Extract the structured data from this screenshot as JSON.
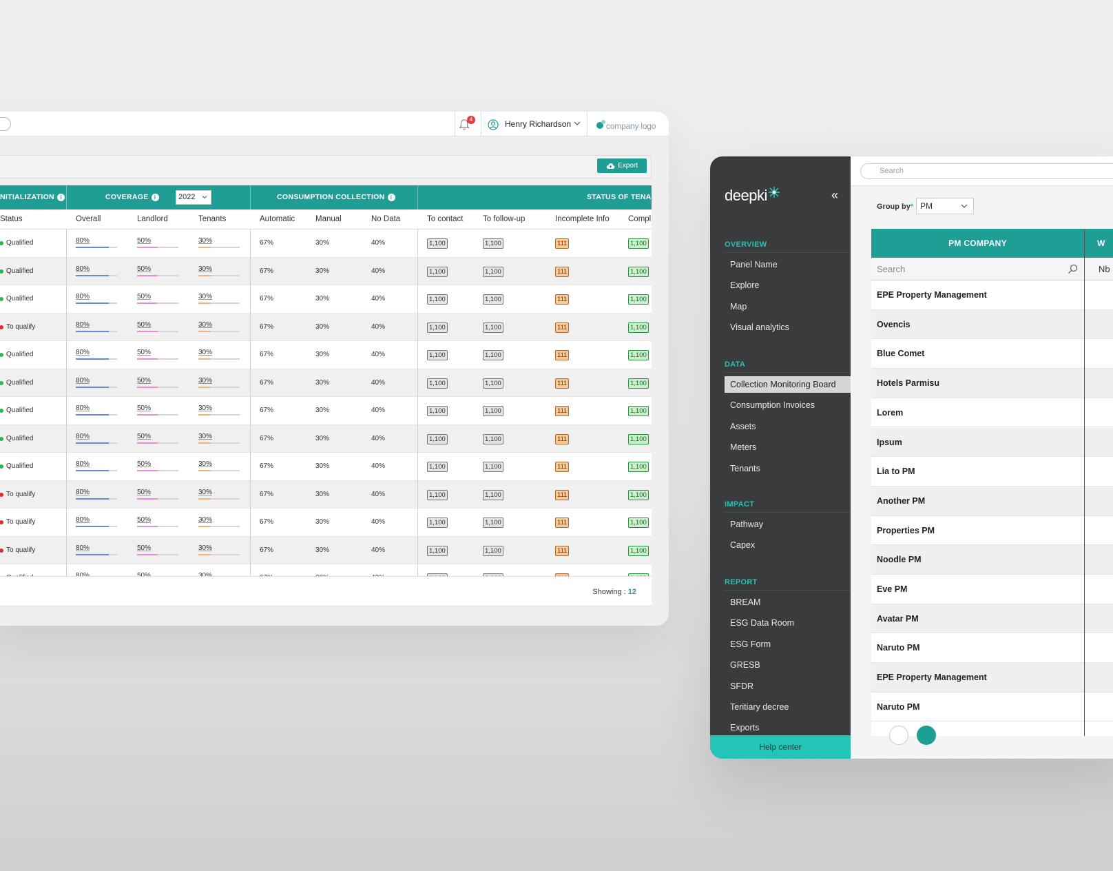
{
  "left_panel": {
    "notifications_count": "4",
    "user_name": "Henry Richardson",
    "company_logo_text": "company logo",
    "export_label": "Export",
    "groups": {
      "initialization": "NITIALIZATION",
      "coverage": "COVERAGE",
      "coverage_year": "2022",
      "consumption": "CONSUMPTION COLLECTION",
      "status": "STATUS OF TENA"
    },
    "columns": [
      "Status",
      "Overall",
      "Landlord",
      "Tenants",
      "Automatic",
      "Manual",
      "No Data",
      "To contact",
      "To follow-up",
      "Incomplete Info",
      "Compl"
    ],
    "rows": [
      {
        "status": "Qualified",
        "state": "ok"
      },
      {
        "status": "Qualified",
        "state": "ok"
      },
      {
        "status": "Qualified",
        "state": "ok"
      },
      {
        "status": "To qualify",
        "state": "todo"
      },
      {
        "status": "Qualified",
        "state": "ok"
      },
      {
        "status": "Qualified",
        "state": "ok"
      },
      {
        "status": "Qualified",
        "state": "ok"
      },
      {
        "status": "Qualified",
        "state": "ok"
      },
      {
        "status": "Qualified",
        "state": "ok"
      },
      {
        "status": "To qualify",
        "state": "todo"
      },
      {
        "status": "To qualify",
        "state": "todo"
      },
      {
        "status": "To qualify",
        "state": "todo"
      }
    ],
    "row_values": {
      "overall": "80%",
      "landlord": "50%",
      "tenants": "30%",
      "overall_fill": 0.8,
      "landlord_fill": 0.5,
      "tenants_fill": 0.3,
      "automatic": "67%",
      "manual": "30%",
      "no_data": "40%",
      "to_contact": "1,100",
      "to_follow_up": "1,100",
      "incomplete_info": "111",
      "complete": "1,100"
    },
    "showing_label": "Showing :",
    "showing_count": "12",
    "colors": {
      "teal": "#1f9e95",
      "ok": "#2eb84a",
      "todo": "#e02b2b",
      "overall_bar": "#6c86d9",
      "landlord_bar": "#e48ee0",
      "tenants_bar": "#f3b27a"
    }
  },
  "right_panel": {
    "brand": "deepki",
    "sections": [
      {
        "title": "OVERVIEW",
        "items": [
          "Panel Name",
          "Explore",
          "Map",
          "Visual analytics"
        ]
      },
      {
        "title": "DATA",
        "items": [
          "Collection Monitoring Board",
          "Consumption Invoices",
          "Assets",
          "Meters",
          "Tenants"
        ]
      },
      {
        "title": "IMPACT",
        "items": [
          "Pathway",
          "Capex"
        ]
      },
      {
        "title": "REPORT",
        "items": [
          "BREAM",
          "ESG Data Room",
          "ESG Form",
          "GRESB",
          "SFDR",
          "Teritiary decree",
          "Exports"
        ]
      }
    ],
    "active_item": "Collection Monitoring Board",
    "help_center": "Help center",
    "search_placeholder": "Search",
    "group_by_label": "Group by",
    "group_by_value": "PM",
    "table_header": "PM COMPANY",
    "table_header_2": "W",
    "table_search_placeholder": "Search",
    "nb_label": "Nb",
    "companies": [
      "EPE Property Management",
      "Ovencis",
      "Blue Comet",
      "Hotels Parmisu",
      "Lorem",
      "Ipsum",
      "Lia to PM",
      "Another PM",
      "Properties PM",
      "Noodle PM",
      "Eve PM",
      "Avatar PM",
      "Naruto PM",
      "EPE Property Management",
      "Naruto PM"
    ]
  }
}
